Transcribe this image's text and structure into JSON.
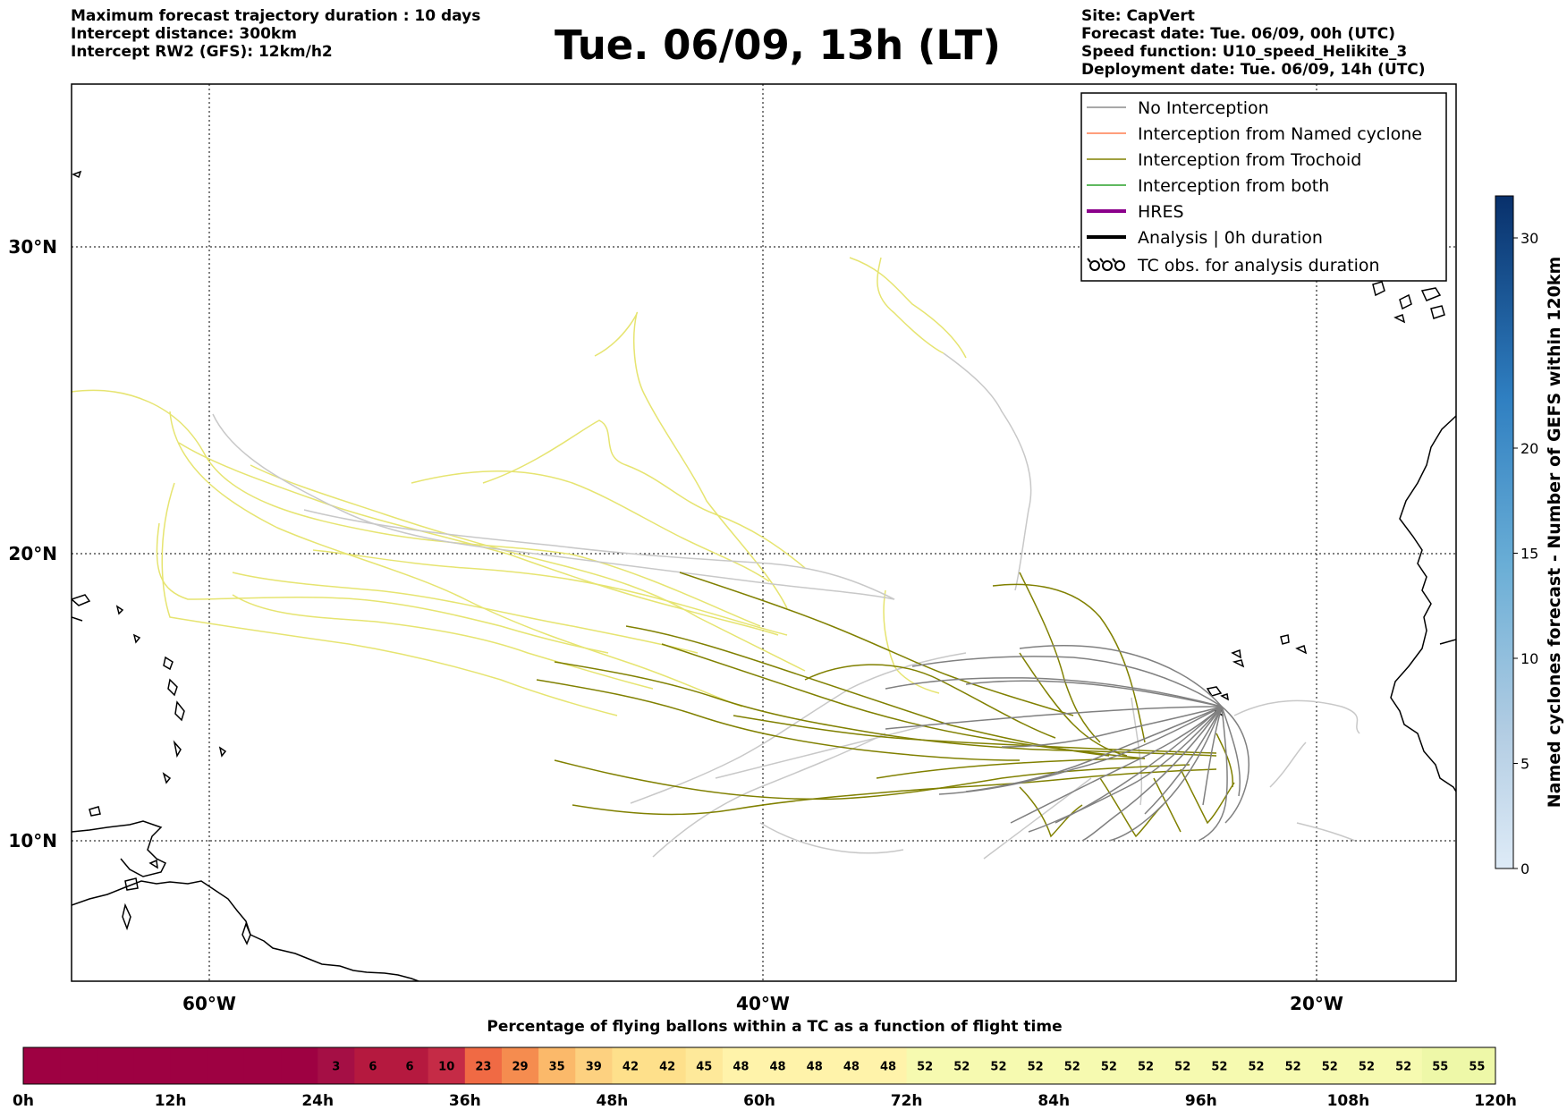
{
  "header": {
    "left_lines": [
      "Maximum forecast trajectory duration : 10 days",
      "Intercept distance: 300km",
      "Intercept RW2 (GFS):  12km/h2"
    ],
    "title": "Tue. 06/09, 13h (LT)",
    "right_lines": [
      "Site: CapVert",
      "Forecast date: Tue. 06/09, 00h (UTC)",
      "Speed function: U10_speed_Helikite_3",
      "Deployment date: Tue. 06/09, 14h (UTC)"
    ]
  },
  "map": {
    "lat_labels": [
      "30°N",
      "20°N",
      "10°N"
    ],
    "lon_labels": [
      "60°W",
      "40°W",
      "20°W"
    ],
    "trajectory_colors": {
      "no_interception": "#808080",
      "no_interception_light": "#c8c8c8",
      "trochoid": "#808000",
      "trochoid_light": "#e6e470"
    }
  },
  "legend": {
    "items": [
      {
        "label": "No Interception",
        "color": "#8c8c8c",
        "style": "thin"
      },
      {
        "label": "Interception from Named cyclone",
        "color": "#ff7f50",
        "style": "thin"
      },
      {
        "label": "Interception from Trochoid",
        "color": "#808000",
        "style": "thin"
      },
      {
        "label": "Interception from both",
        "color": "#2ca02c",
        "style": "thin"
      },
      {
        "label": "HRES",
        "color": "#8b008b",
        "style": "thick"
      },
      {
        "label": "Analysis | 0h duration",
        "color": "#000000",
        "style": "thick"
      },
      {
        "label": "TC obs. for analysis duration",
        "color": "#000000",
        "style": "tc-symbol"
      }
    ]
  },
  "colorbar": {
    "title": "Named cyclones forecast - Number of GEFS within 120km",
    "ticks": [
      "0",
      "5",
      "10",
      "15",
      "20",
      "30"
    ],
    "tick_values": [
      0,
      5,
      10,
      15,
      20,
      30
    ],
    "range": [
      0,
      32
    ]
  },
  "percentage_bar": {
    "title": "Percentage of flying ballons within a TC as a function of flight time",
    "values": [
      "",
      "",
      "",
      "",
      "",
      "",
      "",
      "",
      "3",
      "6",
      "6",
      "10",
      "23",
      "29",
      "35",
      "39",
      "42",
      "42",
      "45",
      "48",
      "48",
      "48",
      "48",
      "48",
      "52",
      "52",
      "52",
      "52",
      "52",
      "52",
      "52",
      "52",
      "52",
      "52",
      "52",
      "52",
      "52",
      "52",
      "55",
      "55"
    ],
    "numeric": [
      0,
      0,
      0,
      0,
      0,
      0,
      0,
      0,
      3,
      6,
      6,
      10,
      23,
      29,
      35,
      39,
      42,
      42,
      45,
      48,
      48,
      48,
      48,
      48,
      52,
      52,
      52,
      52,
      52,
      52,
      52,
      52,
      52,
      52,
      52,
      52,
      52,
      52,
      55,
      55
    ],
    "time_labels": [
      "0h",
      "12h",
      "24h",
      "36h",
      "48h",
      "60h",
      "72h",
      "84h",
      "96h",
      "108h",
      "120h"
    ]
  }
}
